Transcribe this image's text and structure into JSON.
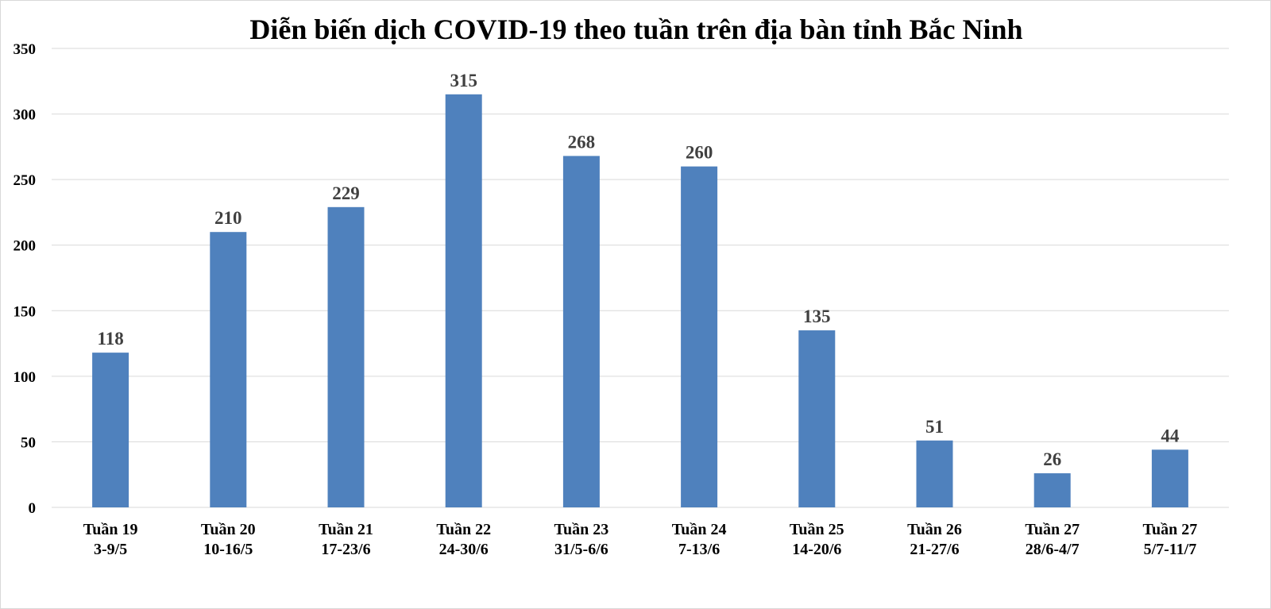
{
  "chart_data": {
    "type": "bar",
    "title": "Diễn biến dịch COVID-19 theo tuần trên địa bàn tỉnh Bắc Ninh",
    "xlabel": "",
    "ylabel": "",
    "categories": [
      [
        "Tuần 19",
        "3-9/5"
      ],
      [
        "Tuần 20",
        "10-16/5"
      ],
      [
        "Tuần 21",
        "17-23/6"
      ],
      [
        "Tuần 22",
        "24-30/6"
      ],
      [
        "Tuần 23",
        "31/5-6/6"
      ],
      [
        "Tuần 24",
        "7-13/6"
      ],
      [
        "Tuần 25",
        "14-20/6"
      ],
      [
        "Tuần 26",
        "21-27/6"
      ],
      [
        "Tuần 27",
        "28/6-4/7"
      ],
      [
        "Tuần 27",
        "5/7-11/7"
      ]
    ],
    "values": [
      118,
      210,
      229,
      315,
      268,
      260,
      135,
      51,
      26,
      44
    ],
    "ylim": [
      0,
      350
    ],
    "yticks": [
      0,
      50,
      100,
      150,
      200,
      250,
      300,
      350
    ],
    "grid": true,
    "legend": "none",
    "bar_color": "#4f81bd",
    "grid_color": "#d9d9d9"
  }
}
